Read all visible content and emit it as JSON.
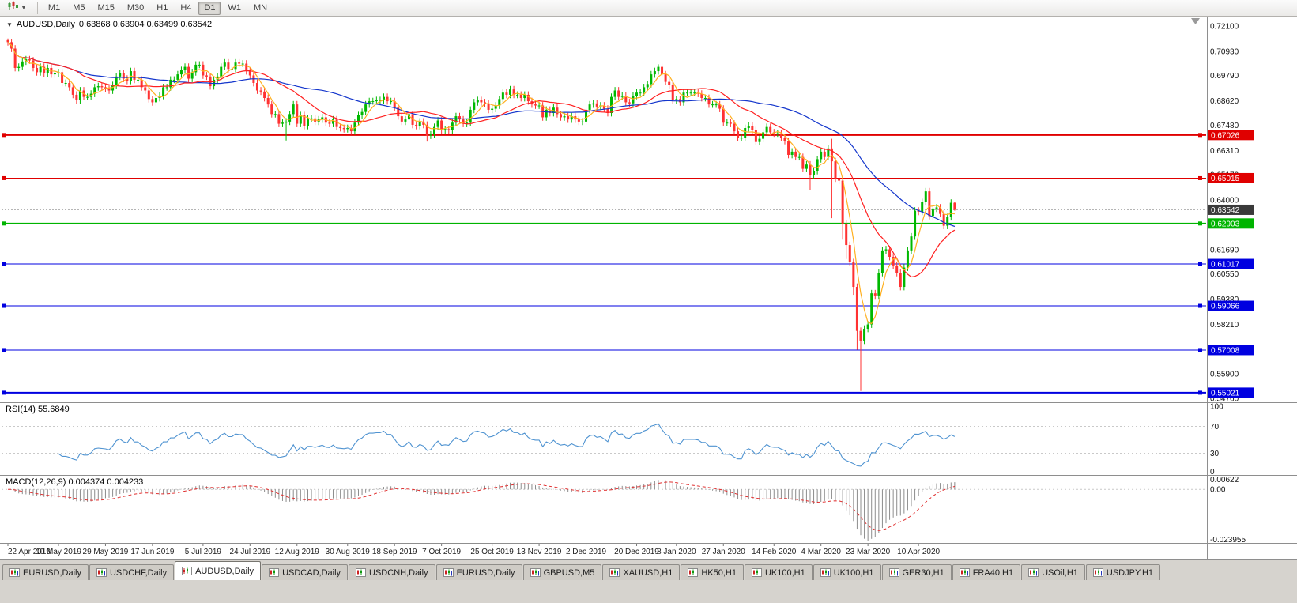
{
  "toolbar": {
    "timeframes": [
      "M1",
      "M5",
      "M15",
      "M30",
      "H1",
      "H4",
      "D1",
      "W1",
      "MN"
    ],
    "active_timeframe": "D1",
    "chart_type_icon": "candlestick-chart"
  },
  "chart_data": [
    {
      "type": "candlestick",
      "symbol": "AUDUSD",
      "timeframe": "Daily",
      "title": "AUDUSD,Daily",
      "ohlc_text": "0.63868 0.63904 0.63499 0.63542",
      "ohlc_displayed": [
        0.63868,
        0.63904,
        0.63499,
        0.63542
      ],
      "first_open": 0.7148,
      "default_wick": 0.0016,
      "up_color": "#00b800",
      "down_color": "#ff3232",
      "closes": [
        0.7135,
        0.7105,
        0.7015,
        0.702,
        0.7045,
        0.7055,
        0.705,
        0.7015,
        0.6995,
        0.702,
        0.699,
        0.7015,
        0.6985,
        0.699,
        0.6995,
        0.6945,
        0.6945,
        0.6925,
        0.689,
        0.6865,
        0.691,
        0.688,
        0.688,
        0.6895,
        0.6925,
        0.693,
        0.6925,
        0.692,
        0.691,
        0.6935,
        0.6975,
        0.699,
        0.6965,
        0.6955,
        0.7,
        0.696,
        0.696,
        0.6925,
        0.691,
        0.687,
        0.6855,
        0.6875,
        0.6885,
        0.6925,
        0.6925,
        0.696,
        0.696,
        0.6985,
        0.7005,
        0.702,
        0.6965,
        0.6995,
        0.703,
        0.703,
        0.698,
        0.6975,
        0.693,
        0.696,
        0.6975,
        0.702,
        0.704,
        0.701,
        0.701,
        0.704,
        0.7035,
        0.7035,
        0.7,
        0.698,
        0.6945,
        0.691,
        0.6905,
        0.6875,
        0.6845,
        0.68,
        0.68,
        0.6755,
        0.676,
        0.6765,
        0.68,
        0.6845,
        0.6755,
        0.6795,
        0.6745,
        0.678,
        0.678,
        0.6765,
        0.6775,
        0.6785,
        0.676,
        0.6755,
        0.6775,
        0.674,
        0.6735,
        0.673,
        0.6735,
        0.672,
        0.676,
        0.6795,
        0.681,
        0.6845,
        0.686,
        0.686,
        0.6865,
        0.6865,
        0.688,
        0.686,
        0.686,
        0.683,
        0.679,
        0.6765,
        0.6775,
        0.68,
        0.675,
        0.6745,
        0.6765,
        0.675,
        0.67,
        0.6705,
        0.674,
        0.677,
        0.6725,
        0.673,
        0.6725,
        0.676,
        0.679,
        0.6775,
        0.6755,
        0.676,
        0.682,
        0.6855,
        0.6865,
        0.6855,
        0.685,
        0.682,
        0.6825,
        0.684,
        0.687,
        0.69,
        0.689,
        0.6915,
        0.689,
        0.689,
        0.6875,
        0.689,
        0.686,
        0.6845,
        0.684,
        0.684,
        0.6785,
        0.682,
        0.6805,
        0.683,
        0.68,
        0.6785,
        0.679,
        0.6775,
        0.679,
        0.6775,
        0.6765,
        0.6765,
        0.682,
        0.6845,
        0.685,
        0.6835,
        0.684,
        0.6825,
        0.6805,
        0.688,
        0.691,
        0.688,
        0.6885,
        0.6855,
        0.685,
        0.6885,
        0.69,
        0.69,
        0.6925,
        0.694,
        0.6985,
        0.7,
        0.702,
        0.6985,
        0.695,
        0.6935,
        0.6865,
        0.687,
        0.6855,
        0.69,
        0.69,
        0.69,
        0.69,
        0.6895,
        0.6875,
        0.6875,
        0.6845,
        0.6845,
        0.6845,
        0.6825,
        0.676,
        0.676,
        0.6755,
        0.672,
        0.669,
        0.669,
        0.6735,
        0.6745,
        0.6725,
        0.667,
        0.6685,
        0.6715,
        0.674,
        0.6715,
        0.671,
        0.671,
        0.669,
        0.6675,
        0.661,
        0.6625,
        0.66,
        0.66,
        0.6545,
        0.6565,
        0.6515,
        0.6535,
        0.659,
        0.6625,
        0.66,
        0.664,
        0.658,
        0.65,
        0.649,
        0.629,
        0.619,
        0.611,
        0.5995,
        0.579,
        0.5745,
        0.58,
        0.582,
        0.5965,
        0.5955,
        0.606,
        0.6165,
        0.617,
        0.6135,
        0.6095,
        0.606,
        0.5995,
        0.6085,
        0.6165,
        0.623,
        0.635,
        0.6345,
        0.639,
        0.644,
        0.6325,
        0.636,
        0.6365,
        0.6335,
        0.628,
        0.632,
        0.6387,
        0.63542
      ],
      "wick_overrides": {
        "0": {
          "high": 0.7152
        },
        "77": {
          "low": 0.6677
        },
        "116": {
          "low": 0.6672
        },
        "180": {
          "high": 0.7032
        },
        "222": {
          "low": 0.6445
        },
        "228": {
          "high": 0.6685,
          "low": 0.6315
        },
        "231": {
          "low": 0.6215
        },
        "232": {
          "low": 0.6125
        },
        "234": {
          "low": 0.5958
        },
        "235": {
          "low": 0.5702
        },
        "236": {
          "low": 0.551
        }
      },
      "y_axis": {
        "top": 0.721,
        "bottom": 0.5476,
        "ticks": [
          "0.72100",
          "0.70930",
          "0.69790",
          "0.68620",
          "0.67480",
          "0.66310",
          "0.65170",
          "0.64000",
          "0.62860",
          "0.61690",
          "0.60550",
          "0.59380",
          "0.58210",
          "0.57070",
          "0.55900",
          "0.54760"
        ]
      },
      "current_price": {
        "value": 0.63542,
        "label": "0.63542",
        "box_color": "#3a3a3a"
      },
      "h_lines": [
        {
          "price": 0.67026,
          "label": "0.67026",
          "color": "#e00000",
          "width": 2
        },
        {
          "price": 0.65015,
          "label": "0.65015",
          "color": "#e00000",
          "width": 1
        },
        {
          "price": 0.62903,
          "label": "0.62903",
          "color": "#00b400",
          "width": 2
        },
        {
          "price": 0.61017,
          "label": "0.61017",
          "color": "#0000e0",
          "width": 1
        },
        {
          "price": 0.59066,
          "label": "0.59066",
          "color": "#0000e0",
          "width": 1
        },
        {
          "price": 0.57008,
          "label": "0.57008",
          "color": "#0000e0",
          "width": 1
        },
        {
          "price": 0.55021,
          "label": "0.55021",
          "color": "#0000e0",
          "width": 2
        }
      ],
      "moving_averages": [
        {
          "period": 45,
          "color": "#1436cc"
        },
        {
          "period": 20,
          "color": "#ff2020"
        },
        {
          "period": 5,
          "color": "#ffb020"
        }
      ],
      "x_labels": [
        {
          "text": "22 Apr 2019",
          "index": 0
        },
        {
          "text": "10 May 2019",
          "index": 14
        },
        {
          "text": "29 May 2019",
          "index": 27
        },
        {
          "text": "17 Jun 2019",
          "index": 40
        },
        {
          "text": "5 Jul 2019",
          "index": 54
        },
        {
          "text": "24 Jul 2019",
          "index": 67
        },
        {
          "text": "12 Aug 2019",
          "index": 80
        },
        {
          "text": "30 Aug 2019",
          "index": 94
        },
        {
          "text": "18 Sep 2019",
          "index": 107
        },
        {
          "text": "7 Oct 2019",
          "index": 120
        },
        {
          "text": "25 Oct 2019",
          "index": 134
        },
        {
          "text": "13 Nov 2019",
          "index": 147
        },
        {
          "text": "2 Dec 2019",
          "index": 160
        },
        {
          "text": "20 Dec 2019",
          "index": 174
        },
        {
          "text": "8 Jan 2020",
          "index": 185
        },
        {
          "text": "27 Jan 2020",
          "index": 198
        },
        {
          "text": "14 Feb 2020",
          "index": 212
        },
        {
          "text": "4 Mar 2020",
          "index": 225
        },
        {
          "text": "23 Mar 2020",
          "index": 238
        },
        {
          "text": "10 Apr 2020",
          "index": 252
        }
      ]
    },
    {
      "type": "line",
      "indicator": "RSI",
      "label": "RSI(14) 55.6849",
      "period": 14,
      "current_value": 55.6849,
      "levels": [
        70,
        30
      ],
      "range": [
        0,
        100
      ],
      "color": "#4f93d1",
      "axis_labels": [
        {
          "text": "100",
          "value": 100
        },
        {
          "text": "70",
          "value": 70
        },
        {
          "text": "30",
          "value": 30
        },
        {
          "text": "0",
          "value": 0
        }
      ],
      "source": "computed from AUDUSD daily closes"
    },
    {
      "type": "bar",
      "indicator": "MACD",
      "label": "MACD(12,26,9) 0.004374 0.004233",
      "fast": 12,
      "slow": 26,
      "signal_period": 9,
      "current_macd": 0.004374,
      "current_signal": 0.004233,
      "histogram_color": "#8c8c8c",
      "signal_color": "#e03030",
      "axis_labels": {
        "top": "0.00622",
        "zero": "0.00",
        "bottom": "-0.023955"
      },
      "source": "computed from AUDUSD daily closes"
    }
  ],
  "tabs": {
    "items": [
      "EURUSD,Daily",
      "USDCHF,Daily",
      "AUDUSD,Daily",
      "USDCAD,Daily",
      "USDCNH,Daily",
      "EURUSD,Daily",
      "GBPUSD,M5",
      "XAUUSD,H1",
      "HK50,H1",
      "UK100,H1",
      "UK100,H1",
      "GER30,H1",
      "FRA40,H1",
      "USOil,H1",
      "USDJPY,H1"
    ],
    "active_index": 2
  }
}
